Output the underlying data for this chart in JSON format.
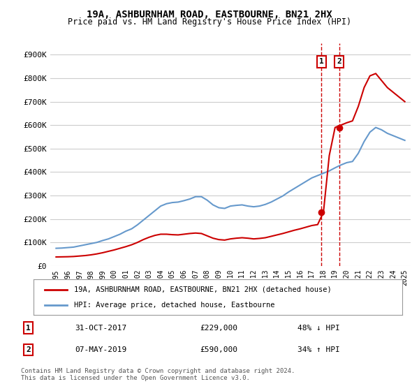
{
  "title": "19A, ASHBURNHAM ROAD, EASTBOURNE, BN21 2HX",
  "subtitle": "Price paid vs. HM Land Registry's House Price Index (HPI)",
  "ylabel": "",
  "background_color": "#ffffff",
  "grid_color": "#cccccc",
  "hpi_color": "#6699cc",
  "property_color": "#cc0000",
  "transaction1": {
    "date_label": "31-OCT-2017",
    "year": 2017.83,
    "price": 229000,
    "pct": "48% ↓ HPI",
    "label": "1"
  },
  "transaction2": {
    "date_label": "07-MAY-2019",
    "year": 2019.35,
    "price": 590000,
    "pct": "34% ↑ HPI",
    "label": "2"
  },
  "legend_property": "19A, ASHBURNHAM ROAD, EASTBOURNE, BN21 2HX (detached house)",
  "legend_hpi": "HPI: Average price, detached house, Eastbourne",
  "footnote": "Contains HM Land Registry data © Crown copyright and database right 2024.\nThis data is licensed under the Open Government Licence v3.0.",
  "ylim": [
    0,
    950000
  ],
  "yticks": [
    0,
    100000,
    200000,
    300000,
    400000,
    500000,
    600000,
    700000,
    800000,
    900000
  ],
  "ytick_labels": [
    "£0",
    "£100K",
    "£200K",
    "£300K",
    "£400K",
    "£500K",
    "£600K",
    "£700K",
    "£800K",
    "£900K"
  ],
  "hpi_years": [
    1995,
    1995.5,
    1996,
    1996.5,
    1997,
    1997.5,
    1998,
    1998.5,
    1999,
    1999.5,
    2000,
    2000.5,
    2001,
    2001.5,
    2002,
    2002.5,
    2003,
    2003.5,
    2004,
    2004.5,
    2005,
    2005.5,
    2006,
    2006.5,
    2007,
    2007.5,
    2008,
    2008.5,
    2009,
    2009.5,
    2010,
    2010.5,
    2011,
    2011.5,
    2012,
    2012.5,
    2013,
    2013.5,
    2014,
    2014.5,
    2015,
    2015.5,
    2016,
    2016.5,
    2017,
    2017.5,
    2018,
    2018.5,
    2019,
    2019.5,
    2020,
    2020.5,
    2021,
    2021.5,
    2022,
    2022.5,
    2023,
    2023.5,
    2024,
    2024.5,
    2025
  ],
  "hpi_values": [
    75000,
    76000,
    78000,
    80000,
    85000,
    90000,
    95000,
    100000,
    108000,
    115000,
    125000,
    135000,
    148000,
    158000,
    175000,
    195000,
    215000,
    235000,
    255000,
    265000,
    270000,
    272000,
    278000,
    285000,
    295000,
    295000,
    280000,
    260000,
    248000,
    245000,
    255000,
    258000,
    260000,
    255000,
    252000,
    255000,
    262000,
    272000,
    285000,
    298000,
    315000,
    330000,
    345000,
    360000,
    375000,
    385000,
    395000,
    405000,
    418000,
    430000,
    440000,
    445000,
    480000,
    530000,
    570000,
    590000,
    580000,
    565000,
    555000,
    545000,
    535000
  ],
  "prop_years": [
    1995,
    1995.5,
    1996,
    1996.5,
    1997,
    1997.5,
    1998,
    1998.5,
    1999,
    1999.5,
    2000,
    2000.5,
    2001,
    2001.5,
    2002,
    2002.5,
    2003,
    2003.5,
    2004,
    2004.5,
    2005,
    2005.5,
    2006,
    2006.5,
    2007,
    2007.5,
    2008,
    2008.5,
    2009,
    2009.5,
    2010,
    2010.5,
    2011,
    2011.5,
    2012,
    2012.5,
    2013,
    2013.5,
    2014,
    2014.5,
    2015,
    2015.5,
    2016,
    2016.5,
    2017,
    2017.5,
    2018,
    2018.5,
    2019,
    2019.5,
    2020,
    2020.5,
    2021,
    2021.5,
    2022,
    2022.5,
    2023,
    2023.5,
    2024,
    2024.5,
    2025
  ],
  "prop_values": [
    38000,
    38500,
    39000,
    40000,
    42000,
    44000,
    47000,
    51000,
    56000,
    62000,
    68000,
    75000,
    82000,
    90000,
    100000,
    112000,
    122000,
    130000,
    135000,
    135000,
    133000,
    132000,
    135000,
    138000,
    140000,
    138000,
    128000,
    118000,
    112000,
    110000,
    115000,
    118000,
    120000,
    118000,
    115000,
    117000,
    120000,
    126000,
    132000,
    138000,
    145000,
    152000,
    158000,
    165000,
    172000,
    176000,
    229000,
    470000,
    590000,
    600000,
    610000,
    618000,
    680000,
    760000,
    810000,
    820000,
    790000,
    760000,
    740000,
    720000,
    700000
  ],
  "xlim": [
    1994.5,
    2025.5
  ],
  "xticks": [
    1995,
    1996,
    1997,
    1998,
    1999,
    2000,
    2001,
    2002,
    2003,
    2004,
    2005,
    2006,
    2007,
    2008,
    2009,
    2010,
    2011,
    2012,
    2013,
    2014,
    2015,
    2016,
    2017,
    2018,
    2019,
    2020,
    2021,
    2022,
    2023,
    2024,
    2025
  ]
}
